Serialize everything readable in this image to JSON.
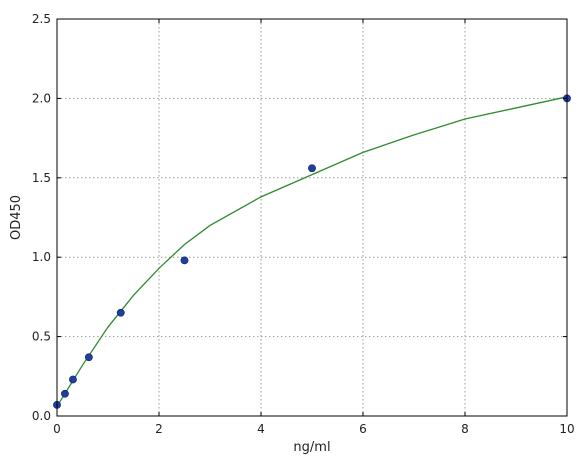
{
  "chart_data": {
    "type": "scatter",
    "title": "",
    "xlabel": "ng/ml",
    "ylabel": "OD450",
    "xlim": [
      0,
      10
    ],
    "ylim": [
      0,
      2.5
    ],
    "x_ticks": [
      0,
      2,
      4,
      6,
      8,
      10
    ],
    "y_ticks": [
      0.0,
      0.5,
      1.0,
      1.5,
      2.0,
      2.5
    ],
    "x_tick_labels": [
      "0",
      "2",
      "4",
      "6",
      "8",
      "10"
    ],
    "y_tick_labels": [
      "0.0",
      "0.5",
      "1.0",
      "1.5",
      "2.0",
      "2.5"
    ],
    "grid": true,
    "legend": "none",
    "series": [
      {
        "kind": "points",
        "color": "#1f3fa0",
        "x": [
          0,
          0.156,
          0.313,
          0.625,
          1.25,
          2.5,
          5,
          10
        ],
        "y": [
          0.07,
          0.14,
          0.23,
          0.37,
          0.65,
          0.98,
          1.56,
          2.0
        ]
      },
      {
        "kind": "fit-curve",
        "color": "#2e8b2e",
        "x": [
          0,
          0.5,
          1,
          1.5,
          2,
          2.5,
          3,
          4,
          5,
          6,
          7,
          8,
          9,
          10
        ],
        "y": [
          0.06,
          0.32,
          0.56,
          0.76,
          0.93,
          1.08,
          1.2,
          1.38,
          1.52,
          1.66,
          1.77,
          1.87,
          1.94,
          2.01
        ]
      }
    ]
  }
}
